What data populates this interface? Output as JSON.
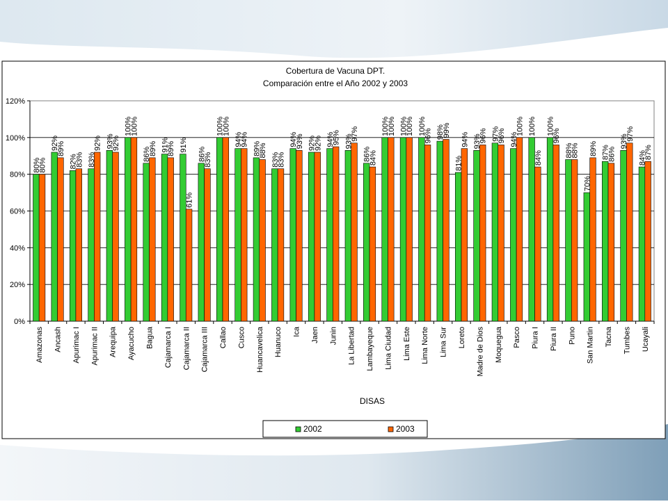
{
  "chart_data": {
    "type": "bar",
    "title": "Cobertura de Vacuna DPT.",
    "subtitle": "Comparación entre el Año 2002 y 2003",
    "xlabel": "DISAS",
    "ylabel": "",
    "ylim": [
      0,
      120
    ],
    "yticks": [
      "0%",
      "20%",
      "40%",
      "60%",
      "80%",
      "100%",
      "120%"
    ],
    "grid": true,
    "legend_position": "bottom",
    "categories": [
      "Amazonas",
      "Ancash",
      "Apurimac I",
      "Apurimac II",
      "Arequipa",
      "Ayacucho",
      "Bagua",
      "Cajamarca I",
      "Cajamarca II",
      "Cajamarca III",
      "Callao",
      "Cusco",
      "Huancavelica",
      "Huanuco",
      "Ica",
      "Jaen",
      "Junin",
      "La Libertad",
      "Lambayeque",
      "Lima Ciudad",
      "Lima Este",
      "Lima Norte",
      "Lima Sur",
      "Loreto",
      "Madre de Dios",
      "Moquegua",
      "Pasco",
      "Piura I",
      "Piura II",
      "Puno",
      "San Martin",
      "Tacna",
      "Tumbes",
      "Ucayali"
    ],
    "series": [
      {
        "name": "2002",
        "color": "#33cc33",
        "values": [
          80,
          92,
          82,
          83,
          93,
          100,
          86,
          91,
          91,
          86,
          100,
          94,
          89,
          83,
          94,
          92,
          94,
          93,
          86,
          100,
          100,
          100,
          98,
          81,
          93,
          97,
          94,
          100,
          100,
          88,
          70,
          87,
          93,
          84
        ],
        "labels": [
          "80%",
          "92%",
          "82%",
          "83%",
          "93%",
          "100%",
          "86%",
          "91%",
          "91%",
          "86%",
          "100%",
          "94%",
          "89%",
          "83%",
          "94%",
          "92%",
          "94%",
          "93%",
          "86%",
          "100%",
          "100%",
          "100%",
          "98%",
          "81%",
          "93%",
          "97%",
          "94%",
          "100%",
          "100%",
          "88%",
          "70%",
          "87%",
          "93%",
          "84%"
        ]
      },
      {
        "name": "2003",
        "color": "#ff6600",
        "values": [
          80,
          89,
          83,
          92,
          92,
          100,
          89,
          89,
          61,
          83,
          100,
          94,
          88,
          83,
          93,
          92,
          95,
          97,
          84,
          100,
          100,
          96,
          99,
          94,
          96,
          96,
          100,
          84,
          96,
          88,
          89,
          86,
          97,
          87
        ],
        "labels": [
          "80%",
          "89%",
          "83%",
          "92%",
          "92%",
          "100%",
          "89%",
          "89%",
          "61%",
          "83%",
          "100%",
          "94%",
          "88%",
          "83%",
          "93%",
          "92%",
          "95%",
          "97%",
          "84%",
          "100%",
          "100%",
          "96%",
          "99%",
          "94%",
          "96%",
          "96%",
          "100%",
          "84%",
          "96%",
          "88%",
          "89%",
          "86%",
          "97%",
          "87%"
        ]
      }
    ]
  }
}
